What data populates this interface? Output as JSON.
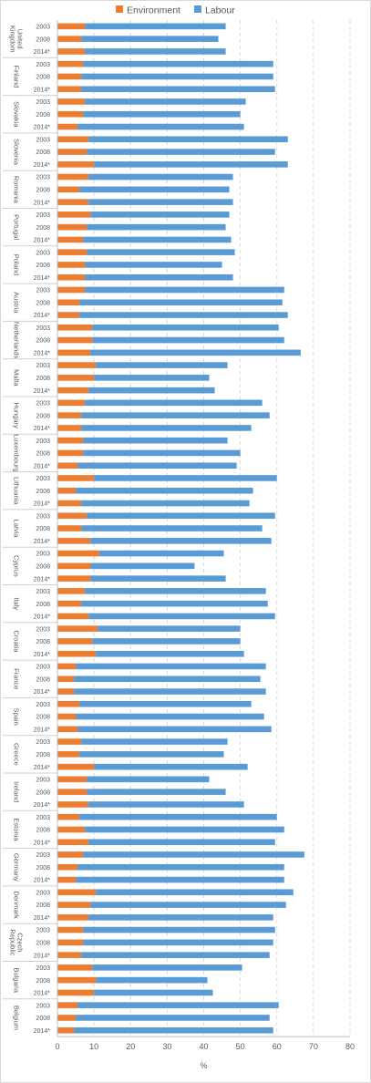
{
  "chart_data": {
    "type": "bar",
    "orientation": "horizontal",
    "stacked": true,
    "xlabel": "%",
    "xlim": [
      0,
      80
    ],
    "xticks": [
      0,
      10,
      20,
      30,
      40,
      50,
      60,
      70,
      80
    ],
    "grid": "vertical dashed",
    "legend": "top-center",
    "series": [
      {
        "name": "Environment",
        "color": "#ED7D31"
      },
      {
        "name": "Labour",
        "color": "#5B9BD5"
      }
    ],
    "years": [
      "2003",
      "2008",
      "2014*"
    ],
    "groups": [
      {
        "country": "United Kingdom",
        "lines": [
          "United",
          "Kingdom"
        ],
        "env": [
          7.5,
          6.5,
          7.5
        ],
        "total": [
          46,
          44,
          46
        ]
      },
      {
        "country": "Finland",
        "lines": [
          "Finland"
        ],
        "env": [
          7,
          6.5,
          6.5
        ],
        "total": [
          59,
          59,
          59.5
        ]
      },
      {
        "country": "Slovakia",
        "lines": [
          "Slovakia"
        ],
        "env": [
          7.5,
          7,
          5.5
        ],
        "total": [
          51.5,
          50,
          51
        ]
      },
      {
        "country": "Slovenia",
        "lines": [
          "Slovenia"
        ],
        "env": [
          8.5,
          8,
          10
        ],
        "total": [
          63,
          59.5,
          63
        ]
      },
      {
        "country": "Romania",
        "lines": [
          "Romania"
        ],
        "env": [
          8.5,
          6,
          8.5
        ],
        "total": [
          48,
          47,
          48
        ]
      },
      {
        "country": "Portugal",
        "lines": [
          "Portugal"
        ],
        "env": [
          9,
          8,
          7
        ],
        "total": [
          47,
          46,
          47.5
        ]
      },
      {
        "country": "Poland",
        "lines": [
          "Poland"
        ],
        "env": [
          8,
          7.5,
          7.5
        ],
        "total": [
          48.5,
          45,
          48
        ]
      },
      {
        "country": "Austria",
        "lines": [
          "Austria"
        ],
        "env": [
          7.5,
          6,
          6
        ],
        "total": [
          62,
          61.5,
          63
        ]
      },
      {
        "country": "Netherlands",
        "lines": [
          "Netherlands"
        ],
        "env": [
          9.5,
          9.5,
          9
        ],
        "total": [
          60.5,
          62,
          66.5
        ]
      },
      {
        "country": "Malta",
        "lines": [
          "Malta"
        ],
        "env": [
          10.5,
          10,
          8.5
        ],
        "total": [
          46.5,
          41.5,
          43
        ]
      },
      {
        "country": "Hungary",
        "lines": [
          "Hungary"
        ],
        "env": [
          7.5,
          6.5,
          6.5
        ],
        "total": [
          56,
          58,
          53
        ]
      },
      {
        "country": "Luxembourg",
        "lines": [
          "Luxembourg"
        ],
        "env": [
          7,
          7,
          5.5
        ],
        "total": [
          46.5,
          50,
          49
        ]
      },
      {
        "country": "Lithuania",
        "lines": [
          "Lithuania"
        ],
        "env": [
          10,
          5,
          6.5
        ],
        "total": [
          60,
          53.5,
          52.5
        ]
      },
      {
        "country": "Latvia",
        "lines": [
          "Latvia"
        ],
        "env": [
          8,
          6.5,
          9
        ],
        "total": [
          59.5,
          56,
          58.5
        ]
      },
      {
        "country": "Cyprus",
        "lines": [
          "Cyprus"
        ],
        "env": [
          11.5,
          9,
          9
        ],
        "total": [
          45.5,
          37.5,
          46
        ]
      },
      {
        "country": "Italy",
        "lines": [
          "Italy"
        ],
        "env": [
          7.5,
          6.5,
          8.5
        ],
        "total": [
          57,
          57.5,
          59.5
        ]
      },
      {
        "country": "Croatia",
        "lines": [
          "Croatia"
        ],
        "env": [
          11,
          9.5,
          10.5
        ],
        "total": [
          50,
          50,
          51
        ]
      },
      {
        "country": "France",
        "lines": [
          "France"
        ],
        "env": [
          5,
          4.5,
          4.5
        ],
        "total": [
          57,
          55.5,
          57
        ]
      },
      {
        "country": "Spain",
        "lines": [
          "Spain"
        ],
        "env": [
          6,
          5,
          5.5
        ],
        "total": [
          53,
          56.5,
          58.5
        ]
      },
      {
        "country": "Greece",
        "lines": [
          "Greece"
        ],
        "env": [
          6.5,
          6,
          10
        ],
        "total": [
          46.5,
          45.5,
          52
        ]
      },
      {
        "country": "Ireland",
        "lines": [
          "Ireland"
        ],
        "env": [
          8,
          8,
          8.5
        ],
        "total": [
          41.5,
          46,
          51
        ]
      },
      {
        "country": "Estonia",
        "lines": [
          "Estonia"
        ],
        "env": [
          6,
          7.5,
          8.5
        ],
        "total": [
          60,
          62,
          59.5
        ]
      },
      {
        "country": "Germany",
        "lines": [
          "Germany"
        ],
        "env": [
          7,
          5.5,
          5
        ],
        "total": [
          67.5,
          62,
          62
        ]
      },
      {
        "country": "Denmark",
        "lines": [
          "Denmark"
        ],
        "env": [
          10.5,
          9,
          8.5
        ],
        "total": [
          64.5,
          62.5,
          59
        ]
      },
      {
        "country": "Czech Republic",
        "lines": [
          "Czech",
          "Republic"
        ],
        "env": [
          7,
          7,
          6.5
        ],
        "total": [
          59.5,
          59,
          58
        ]
      },
      {
        "country": "Bulgaria",
        "lines": [
          "Bulgaria"
        ],
        "env": [
          9.5,
          10.5,
          10
        ],
        "total": [
          50.5,
          41,
          42.5
        ]
      },
      {
        "country": "Belgium",
        "lines": [
          "Belgium"
        ],
        "env": [
          5.5,
          5,
          4.5
        ],
        "total": [
          60.5,
          58,
          59
        ]
      }
    ]
  }
}
